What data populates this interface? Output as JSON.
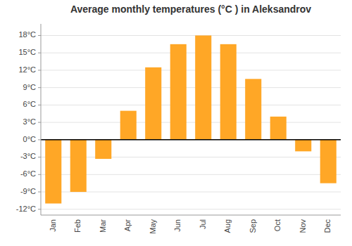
{
  "chart_data": {
    "type": "bar",
    "title": "Average monthly temperatures (°C ) in Aleksandrov",
    "categories": [
      "Jan",
      "Feb",
      "Mar",
      "Apr",
      "May",
      "Jun",
      "Jul",
      "Aug",
      "Sep",
      "Oct",
      "Nov",
      "Dec"
    ],
    "values": [
      -11,
      -9,
      -3.3,
      5,
      12.5,
      16.5,
      18,
      16.5,
      10.5,
      4,
      -2,
      -7.5
    ],
    "color": "#FFA726",
    "ylim": [
      -13,
      20
    ],
    "yticks": [
      {
        "value": -12,
        "label": "-12°C"
      },
      {
        "value": -9,
        "label": "-9°C"
      },
      {
        "value": -6,
        "label": "-6°C"
      },
      {
        "value": -3,
        "label": "-3°C"
      },
      {
        "value": 0,
        "label": "0°C"
      },
      {
        "value": 3,
        "label": "3°C"
      },
      {
        "value": 6,
        "label": "6°C"
      },
      {
        "value": 9,
        "label": "9°C"
      },
      {
        "value": 12,
        "label": "12°C"
      },
      {
        "value": 15,
        "label": "15°C"
      },
      {
        "value": 18,
        "label": "18°C"
      }
    ],
    "grid": true
  }
}
